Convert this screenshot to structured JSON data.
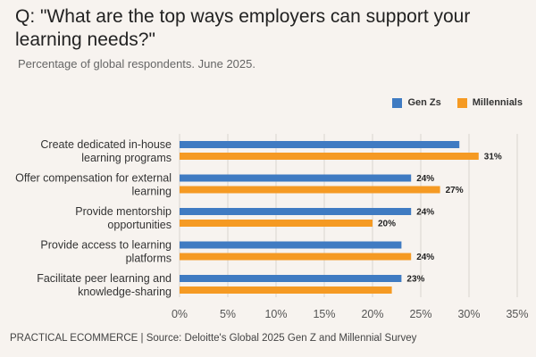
{
  "title": "Q: \"What are the top ways employers can support your learning needs?\"",
  "subtitle": "Percentage of global respondents. June 2025.",
  "source": "PRACTICAL ECOMMERCE | Source: Deloitte's Global 2025 Gen Z and Millennial Survey",
  "colors": {
    "gen_z": "#3f7bc2",
    "millennials": "#f59a23",
    "grid": "#d9d4cf",
    "axis_text": "#555555"
  },
  "chart_data": {
    "type": "bar",
    "orientation": "horizontal",
    "categories": [
      [
        "Create dedicated in-house",
        "learning programs"
      ],
      [
        "Offer compensation for external",
        "learning"
      ],
      [
        "Provide mentorship",
        "opportunities"
      ],
      [
        "Provide access to learning",
        "platforms"
      ],
      [
        "Facilitate peer learning and",
        "knowledge-sharing"
      ]
    ],
    "series": [
      {
        "name": "Gen Zs",
        "values": [
          29,
          24,
          24,
          23,
          23
        ],
        "labels": [
          "",
          "24%",
          "24%",
          "",
          "23%"
        ]
      },
      {
        "name": "Millennials",
        "values": [
          31,
          27,
          20,
          24,
          22
        ],
        "labels": [
          "31%",
          "27%",
          "20%",
          "24%",
          ""
        ]
      }
    ],
    "xlim": [
      0,
      35
    ],
    "xticks": [
      "0%",
      "5%",
      "10%",
      "15%",
      "20%",
      "25%",
      "30%",
      "35%"
    ],
    "grid": true,
    "legend_position": "top-right"
  }
}
